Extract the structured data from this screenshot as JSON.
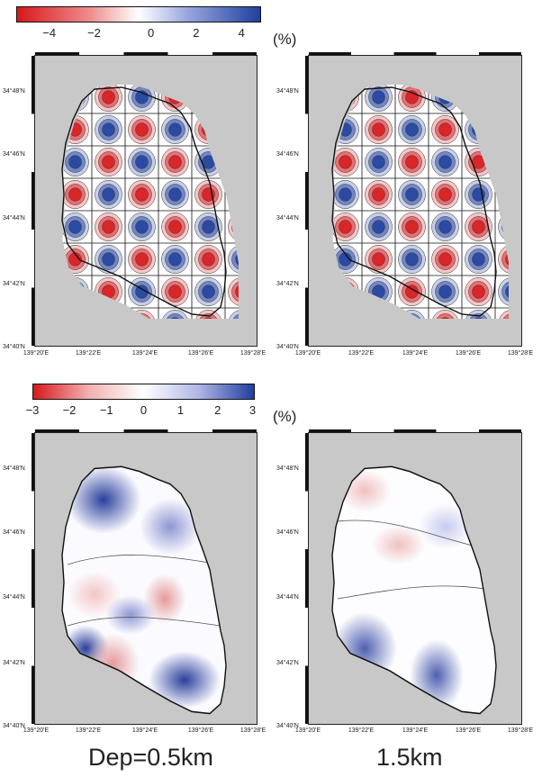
{
  "colorbar_top": {
    "ticks": [
      "−4",
      "−2",
      "0",
      "2",
      "4"
    ],
    "unit": "(%)",
    "colors": {
      "negative": "#d7191c",
      "zero": "#ffffff",
      "positive": "#1f3f9f"
    }
  },
  "colorbar_bottom": {
    "ticks": [
      "−3",
      "−2",
      "−1",
      "0",
      "1",
      "2",
      "3"
    ],
    "unit": "(%)",
    "colors": {
      "negative": "#d7191c",
      "zero": "#ffffff",
      "positive": "#1f3f9f"
    }
  },
  "axes": {
    "lat_labels": [
      "34°48'N",
      "34°46'N",
      "34°44'N",
      "34°42'N",
      "34°40'N"
    ],
    "lon_labels": [
      "139°20'E",
      "139°22'E",
      "139°24'E",
      "139°26'E",
      "139°28'E"
    ]
  },
  "panels": [
    {
      "name": "checkerboard-input-0.5km"
    },
    {
      "name": "checkerboard-input-1.5km"
    },
    {
      "name": "velocity-anomaly-0.5km"
    },
    {
      "name": "velocity-anomaly-1.5km"
    }
  ],
  "captions": {
    "left": "Dep=0.5km",
    "right": "1.5km"
  },
  "background_color": "#c8c8c8"
}
